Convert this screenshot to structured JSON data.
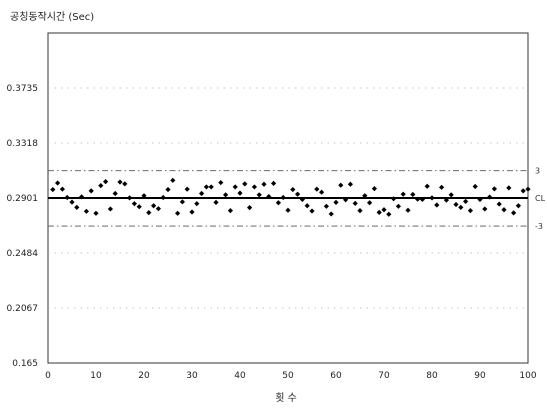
{
  "chart_data": {
    "type": "scatter",
    "title": "공칭동작시간 (Sec)",
    "xlabel": "횟 수",
    "ylabel": "",
    "xlim": [
      0,
      100
    ],
    "ylim": [
      0.165,
      0.4152
    ],
    "x_ticks": [
      0,
      10,
      20,
      30,
      40,
      50,
      60,
      70,
      80,
      90,
      100
    ],
    "y_ticks": [
      {
        "value": 0.165,
        "label": "0.165"
      },
      {
        "value": 0.2067,
        "label": "0.2067"
      },
      {
        "value": 0.2484,
        "label": "0.2484"
      },
      {
        "value": 0.2901,
        "label": "0.2901"
      },
      {
        "value": 0.3318,
        "label": "0.3318"
      },
      {
        "value": 0.3735,
        "label": "0.3735"
      }
    ],
    "grid": "horizontal dotted",
    "reference_lines": [
      {
        "label": "-3",
        "value": 0.2688,
        "style": "dash-dot"
      },
      {
        "label": "CL",
        "value": 0.2901,
        "style": "solid"
      },
      {
        "label": "3",
        "value": 0.3108,
        "style": "dash-dot"
      }
    ],
    "series": [
      {
        "marker": "diamond",
        "color": "#000000",
        "x": [
          1,
          2,
          3,
          4,
          5,
          6,
          7,
          8,
          9,
          10,
          11,
          12,
          13,
          14,
          15,
          16,
          17,
          18,
          19,
          20,
          21,
          22,
          23,
          24,
          25,
          26,
          27,
          28,
          29,
          30,
          31,
          32,
          33,
          34,
          35,
          36,
          37,
          38,
          39,
          40,
          41,
          42,
          43,
          44,
          45,
          46,
          47,
          48,
          49,
          50,
          51,
          52,
          53,
          54,
          55,
          56,
          57,
          58,
          59,
          60,
          61,
          62,
          63,
          64,
          65,
          66,
          67,
          68,
          69,
          70,
          71,
          72,
          73,
          74,
          75,
          76,
          77,
          78,
          79,
          80,
          81,
          82,
          83,
          84,
          85,
          86,
          87,
          88,
          89,
          90,
          91,
          92,
          93,
          94,
          95,
          96,
          97,
          98,
          99,
          100
        ],
        "y": [
          0.2965,
          0.3015,
          0.2968,
          0.2905,
          0.287,
          0.283,
          0.291,
          0.28,
          0.2955,
          0.2785,
          0.2995,
          0.3025,
          0.2818,
          0.2935,
          0.3022,
          0.3008,
          0.2902,
          0.2858,
          0.2835,
          0.2918,
          0.279,
          0.2842,
          0.282,
          0.2905,
          0.2965,
          0.3035,
          0.2785,
          0.2872,
          0.2968,
          0.2795,
          0.2858,
          0.2935,
          0.2985,
          0.2985,
          0.2868,
          0.3018,
          0.2925,
          0.2805,
          0.2985,
          0.2938,
          0.3008,
          0.2828,
          0.2985,
          0.2925,
          0.3005,
          0.2912,
          0.3012,
          0.2865,
          0.2905,
          0.2808,
          0.2965,
          0.293,
          0.289,
          0.2842,
          0.2802,
          0.2968,
          0.2945,
          0.2838,
          0.278,
          0.2868,
          0.2998,
          0.2888,
          0.3005,
          0.286,
          0.2805,
          0.2918,
          0.2865,
          0.2972,
          0.2792,
          0.2812,
          0.2778,
          0.2895,
          0.2838,
          0.293,
          0.2808,
          0.2928,
          0.2892,
          0.289,
          0.299,
          0.2902,
          0.2848,
          0.2982,
          0.2885,
          0.2925,
          0.2852,
          0.283,
          0.2875,
          0.2805,
          0.2988,
          0.289,
          0.2818,
          0.2908,
          0.297,
          0.2855,
          0.2812,
          0.2978,
          0.2788,
          0.2842,
          0.2955,
          0.2968
        ]
      }
    ]
  }
}
